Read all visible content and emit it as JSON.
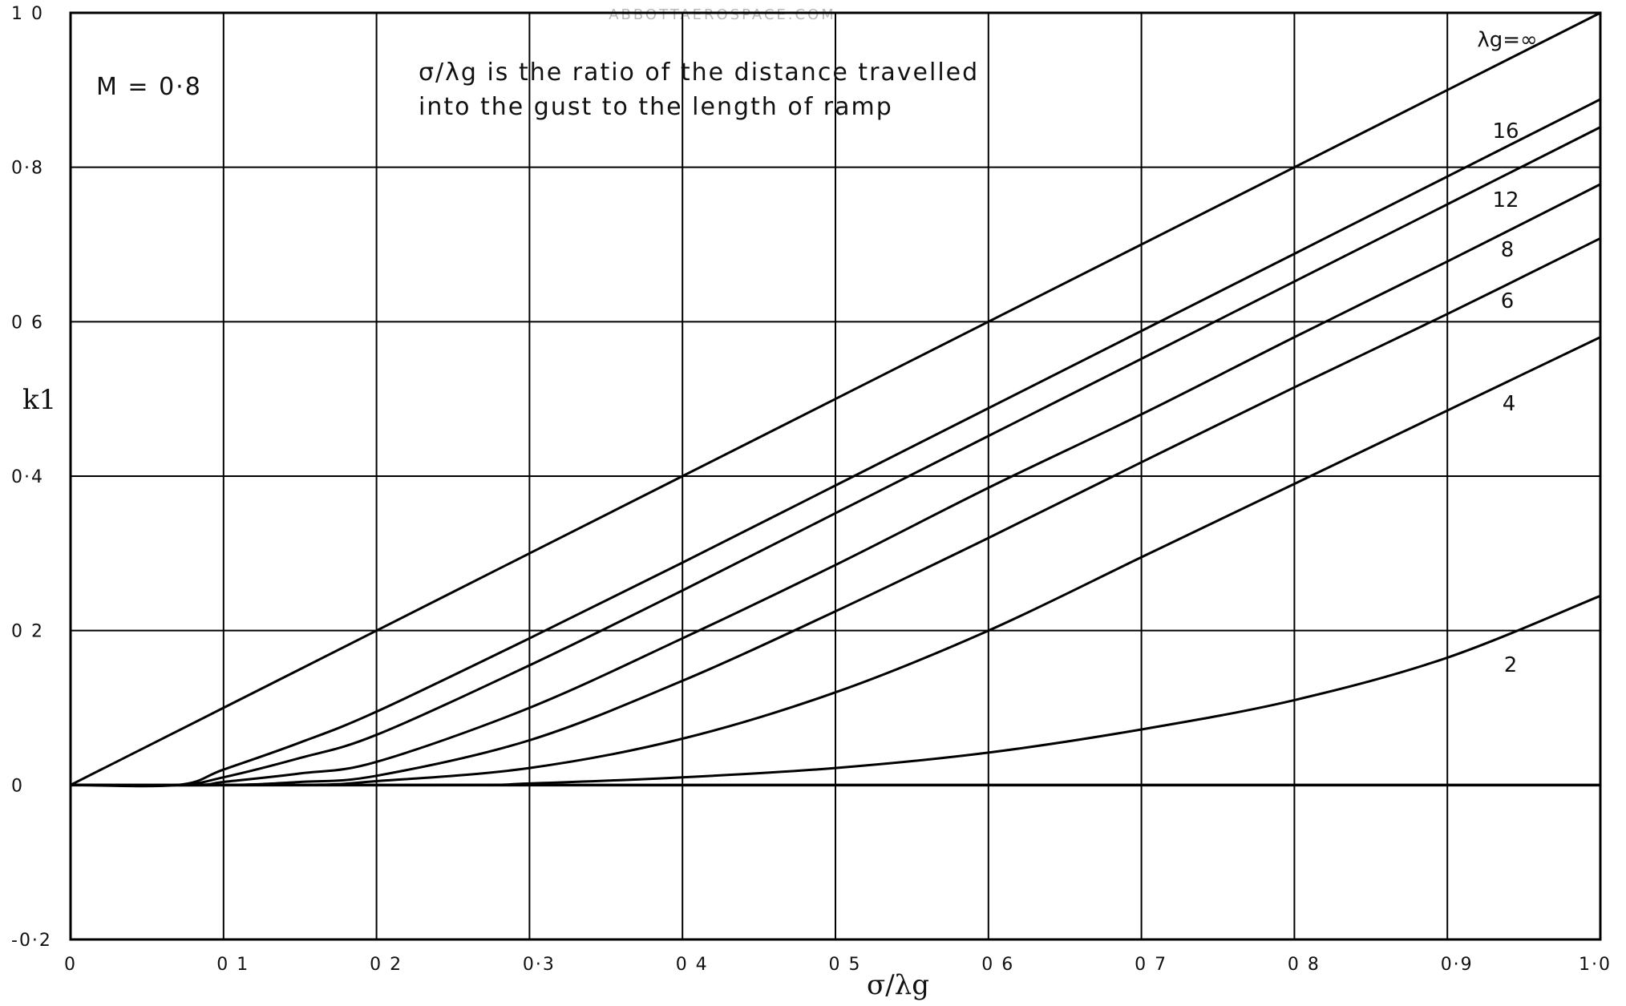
{
  "watermark": "ABBOTTAEROSPACE.COM",
  "chart_data": {
    "type": "line",
    "xlabel": "σ/λg",
    "ylabel": "k1",
    "xlim": [
      0,
      1.0
    ],
    "ylim": [
      -0.2,
      1.0
    ],
    "grid": true,
    "x_ticks": [
      {
        "value": 0,
        "label": "0"
      },
      {
        "value": 0.1,
        "label": "0 1"
      },
      {
        "value": 0.2,
        "label": "0 2"
      },
      {
        "value": 0.3,
        "label": "0·3"
      },
      {
        "value": 0.4,
        "label": "0 4"
      },
      {
        "value": 0.5,
        "label": "0 5"
      },
      {
        "value": 0.6,
        "label": "0 6"
      },
      {
        "value": 0.7,
        "label": "0 7"
      },
      {
        "value": 0.8,
        "label": "0 8"
      },
      {
        "value": 0.9,
        "label": "0·9"
      },
      {
        "value": 1.0,
        "label": "1·0"
      }
    ],
    "y_ticks": [
      {
        "value": 1.0,
        "label": "1 0"
      },
      {
        "value": 0.8,
        "label": "0·8"
      },
      {
        "value": 0.6,
        "label": "0 6"
      },
      {
        "value": 0.4,
        "label": "0·4"
      },
      {
        "value": 0.2,
        "label": "0 2"
      },
      {
        "value": 0,
        "label": "0"
      },
      {
        "value": -0.2,
        "label": "-0·2"
      }
    ],
    "annotations": {
      "mach": "M = 0·8",
      "note_line1": "σ/λg is the ratio of the distance travelled",
      "note_line2": "into the gust to the length of ramp"
    },
    "series": [
      {
        "name": "λg=∞",
        "x": [
          0,
          0.1,
          0.2,
          0.3,
          0.4,
          0.5,
          0.6,
          0.7,
          0.8,
          0.9,
          1.0
        ],
        "y": [
          0,
          0.1,
          0.2,
          0.3,
          0.4,
          0.5,
          0.6,
          0.7,
          0.8,
          0.9,
          1.0
        ]
      },
      {
        "name": "16",
        "x": [
          0,
          0.07,
          0.1,
          0.15,
          0.2,
          0.3,
          0.4,
          0.5,
          0.6,
          0.7,
          0.8,
          0.9,
          1.0
        ],
        "y": [
          0,
          0,
          0.02,
          0.055,
          0.095,
          0.19,
          0.288,
          0.388,
          0.488,
          0.588,
          0.688,
          0.788,
          0.888
        ]
      },
      {
        "name": "12",
        "x": [
          0,
          0.07,
          0.1,
          0.15,
          0.2,
          0.3,
          0.4,
          0.5,
          0.6,
          0.7,
          0.8,
          0.9,
          1.0
        ],
        "y": [
          0,
          0,
          0.01,
          0.035,
          0.065,
          0.155,
          0.252,
          0.352,
          0.452,
          0.552,
          0.652,
          0.752,
          0.852
        ]
      },
      {
        "name": "8",
        "x": [
          0,
          0.08,
          0.1,
          0.15,
          0.2,
          0.3,
          0.4,
          0.5,
          0.6,
          0.7,
          0.8,
          0.9,
          1.0
        ],
        "y": [
          0,
          0,
          0.004,
          0.015,
          0.03,
          0.1,
          0.19,
          0.285,
          0.385,
          0.48,
          0.58,
          0.678,
          0.778
        ]
      },
      {
        "name": "6",
        "x": [
          0,
          0.1,
          0.15,
          0.2,
          0.3,
          0.4,
          0.5,
          0.6,
          0.7,
          0.8,
          0.9,
          1.0
        ],
        "y": [
          0,
          0,
          0.004,
          0.012,
          0.058,
          0.135,
          0.225,
          0.32,
          0.418,
          0.515,
          0.61,
          0.708
        ]
      },
      {
        "name": "4",
        "x": [
          0,
          0.15,
          0.2,
          0.3,
          0.4,
          0.5,
          0.6,
          0.7,
          0.8,
          0.9,
          1.0
        ],
        "y": [
          0,
          0,
          0.005,
          0.022,
          0.06,
          0.12,
          0.2,
          0.295,
          0.39,
          0.485,
          0.58
        ]
      },
      {
        "name": "2",
        "x": [
          0,
          0.25,
          0.3,
          0.4,
          0.5,
          0.6,
          0.7,
          0.8,
          0.9,
          1.0
        ],
        "y": [
          0,
          0,
          0.002,
          0.01,
          0.022,
          0.042,
          0.072,
          0.11,
          0.165,
          0.245
        ]
      }
    ]
  }
}
